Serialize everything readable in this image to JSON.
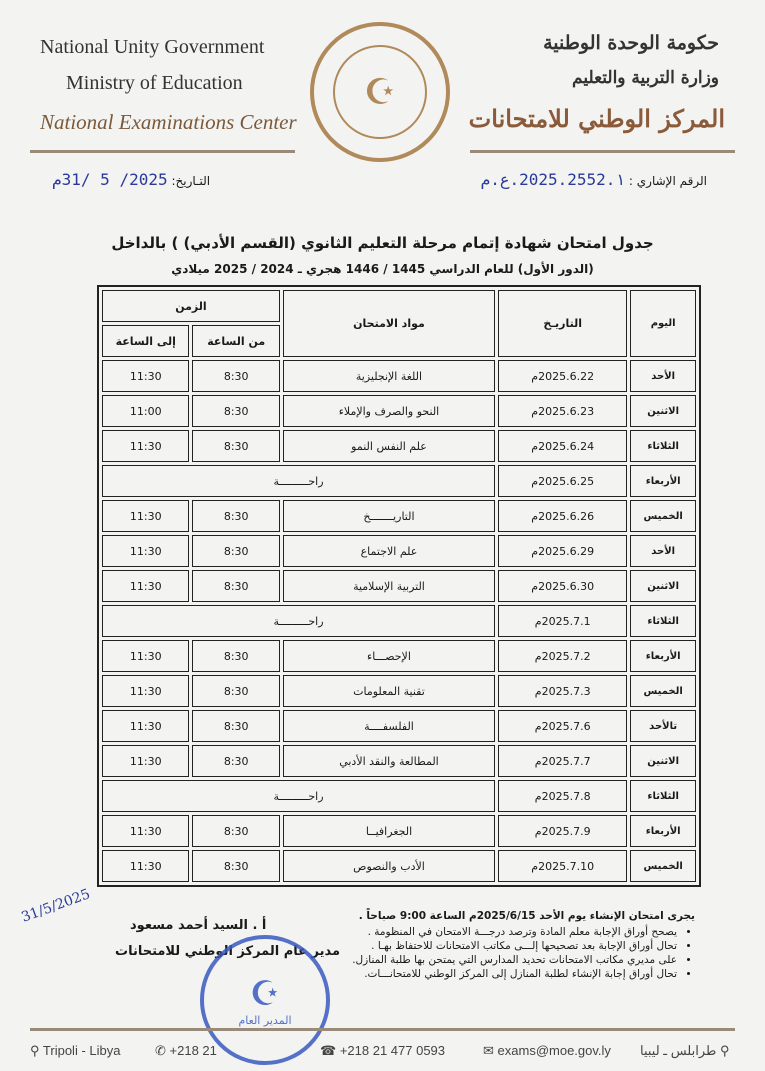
{
  "header": {
    "en_line1": "National Unity Government",
    "en_line2": "Ministry of Education",
    "en_line3": "National Examinations Center",
    "ar_line1": "حكومة الوحدة الوطنية",
    "ar_line2": "وزارة التربية والتعليم",
    "ar_line3": "المركز الوطني للامتحانات"
  },
  "ref": {
    "label": "الرقم الإشاري :",
    "value": "2025.2552.١.ع.م",
    "date_label": "التـاريخ:",
    "date_value": "2025/ 5 /31م"
  },
  "title": "جدول امتحان شهادة إتمام مرحلة التعليم الثانوي (القسم الأدبي) ) بالداخل",
  "subtitle": "(الدور الأول) للعام الدراسي 1445 / 1446 هجري ـ 2024 / 2025 ميلادي",
  "table": {
    "headers": {
      "day": "اليوم",
      "date": "التاريـخ",
      "subject": "مواد الامتحان",
      "time": "الزمن",
      "from": "من الساعة",
      "to": "إلى الساعة"
    },
    "rows": [
      {
        "day": "الأحد",
        "date": "2025.6.22م",
        "subject": "اللغة الإنجليزية",
        "from": "8:30",
        "to": "11:30"
      },
      {
        "day": "الاثنين",
        "date": "2025.6.23م",
        "subject": "النحو والصرف والإملاء",
        "from": "8:30",
        "to": "11:00"
      },
      {
        "day": "الثلاثاء",
        "date": "2025.6.24م",
        "subject": "علم النفس النمو",
        "from": "8:30",
        "to": "11:30"
      },
      {
        "day": "الأربعاء",
        "date": "2025.6.25م",
        "rest": "راحـــــــــة"
      },
      {
        "day": "الخميس",
        "date": "2025.6.26م",
        "subject": "التاريـــــــخ",
        "from": "8:30",
        "to": "11:30"
      },
      {
        "day": "الأحد",
        "date": "2025.6.29م",
        "subject": "علم الاجتماع",
        "from": "8:30",
        "to": "11:30"
      },
      {
        "day": "الاثنين",
        "date": "2025.6.30م",
        "subject": "التربية الإسلامية",
        "from": "8:30",
        "to": "11:30"
      },
      {
        "day": "الثلاثاء",
        "date": "2025.7.1م",
        "rest": "راحـــــــــة"
      },
      {
        "day": "الأربعاء",
        "date": "2025.7.2م",
        "subject": "الإحصـــاء",
        "from": "8:30",
        "to": "11:30"
      },
      {
        "day": "الخميس",
        "date": "2025.7.3م",
        "subject": "تقنية المعلومات",
        "from": "8:30",
        "to": "11:30"
      },
      {
        "day": "تالأحد",
        "date": "2025.7.6م",
        "subject": "الفلسفــــة",
        "from": "8:30",
        "to": "11:30"
      },
      {
        "day": "الاثنين",
        "date": "2025.7.7م",
        "subject": "المطالعة والنقد الأدبي",
        "from": "8:30",
        "to": "11:30"
      },
      {
        "day": "الثلاثاء",
        "date": "2025.7.8م",
        "rest": "راحـــــــــة"
      },
      {
        "day": "الأربعاء",
        "date": "2025.7.9م",
        "subject": "الجغرافيــا",
        "from": "8:30",
        "to": "11:30"
      },
      {
        "day": "الخميس",
        "date": "2025.7.10م",
        "subject": "الأدب والنصوص",
        "from": "8:30",
        "to": "11:30"
      }
    ]
  },
  "notes": {
    "intro": "يجرى امتحان الإنشاء يوم الأحد 2025/6/15م الساعة 9:00 صباحاً .",
    "items": [
      "يصحح أوراق الإجابة معلم المادة وترصد درجـــة الامتحان في المنظومة .",
      "تحال أوراق الإجابة بعد تصحيحها إلـــى مكاتب الامتحانات للاحتفاظ بهـا .",
      "على مديري مكاتب الامتحانات تحديد المدارس التي يمتحن بها طلبة المنازل.",
      "تحال أوراق إجابة الإنشاء لطلبة المنازل إلى المركز الوطني للامتحانـــات."
    ]
  },
  "signature": {
    "name": "أ . السيد أحمد مسعود",
    "role": "مدير عام المركز الوطني للامتحانات",
    "stamp_text": "المدير العام",
    "handwritten": "31/5/2025"
  },
  "footer": {
    "city_en": "Tripoli - Libya",
    "phone": "+218 21",
    "fax": "+218 21 477 0593",
    "email": "exams@moe.gov.ly",
    "city_ar": "طرابلس ـ ليبيا"
  }
}
